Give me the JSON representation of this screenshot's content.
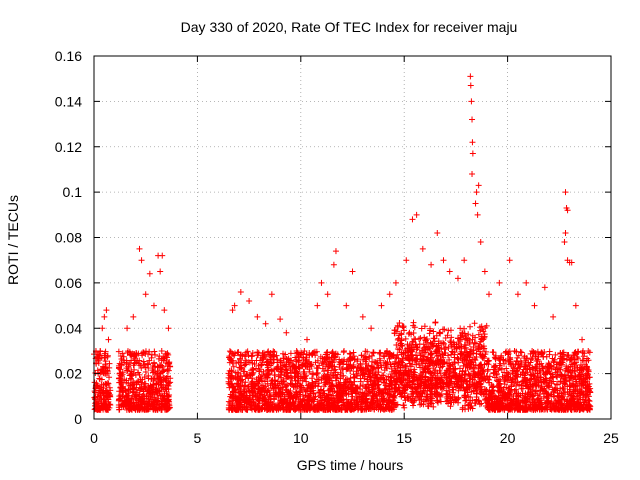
{
  "chart_data": {
    "type": "scatter",
    "title": "Day 330 of 2020, Rate Of TEC Index for receiver maju",
    "xlabel": "GPS time / hours",
    "ylabel": "ROTI / TECUs",
    "xlim": [
      0,
      25
    ],
    "ylim": [
      0,
      0.16
    ],
    "grid": true,
    "marker": "+",
    "color": "#ff0000",
    "xticks": [
      0,
      5,
      10,
      15,
      20,
      25
    ],
    "xtick_labels": [
      "0",
      "5",
      "10",
      "15",
      "20",
      "25"
    ],
    "yticks": [
      0,
      0.02,
      0.04,
      0.06,
      0.08,
      0.1,
      0.12,
      0.14,
      0.16
    ],
    "ytick_labels": [
      "0",
      "0.02",
      "0.04",
      "0.06",
      "0.08",
      "0.1",
      "0.12",
      "0.14",
      "0.16"
    ],
    "series": [
      {
        "name": "ROTI",
        "coverage_intervals_hours": [
          [
            0,
            0.8
          ],
          [
            1.2,
            3.7
          ],
          [
            6.5,
            9.5
          ],
          [
            9.5,
            24
          ]
        ],
        "points": [
          [
            0.1,
            0.015
          ],
          [
            0.2,
            0.02
          ],
          [
            0.3,
            0.03
          ],
          [
            0.4,
            0.04
          ],
          [
            0.5,
            0.045
          ],
          [
            0.6,
            0.048
          ],
          [
            0.7,
            0.035
          ],
          [
            0.2,
            0.008
          ],
          [
            1.3,
            0.02
          ],
          [
            1.6,
            0.04
          ],
          [
            1.9,
            0.045
          ],
          [
            2.2,
            0.075
          ],
          [
            2.3,
            0.07
          ],
          [
            2.5,
            0.055
          ],
          [
            2.7,
            0.064
          ],
          [
            2.9,
            0.05
          ],
          [
            3.1,
            0.072
          ],
          [
            3.2,
            0.065
          ],
          [
            3.3,
            0.072
          ],
          [
            3.4,
            0.048
          ],
          [
            3.6,
            0.04
          ],
          [
            3.5,
            0.012
          ],
          [
            6.7,
            0.048
          ],
          [
            6.8,
            0.05
          ],
          [
            7.1,
            0.056
          ],
          [
            7.5,
            0.052
          ],
          [
            7.9,
            0.045
          ],
          [
            8.3,
            0.042
          ],
          [
            8.6,
            0.055
          ],
          [
            9.0,
            0.044
          ],
          [
            9.3,
            0.038
          ],
          [
            9.8,
            0.03
          ],
          [
            10.3,
            0.035
          ],
          [
            10.8,
            0.05
          ],
          [
            11.0,
            0.06
          ],
          [
            11.3,
            0.055
          ],
          [
            11.6,
            0.068
          ],
          [
            11.7,
            0.074
          ],
          [
            12.2,
            0.05
          ],
          [
            12.5,
            0.065
          ],
          [
            13.0,
            0.045
          ],
          [
            13.4,
            0.04
          ],
          [
            13.9,
            0.05
          ],
          [
            14.3,
            0.055
          ],
          [
            14.6,
            0.06
          ],
          [
            15.1,
            0.07
          ],
          [
            15.4,
            0.088
          ],
          [
            15.6,
            0.09
          ],
          [
            15.9,
            0.075
          ],
          [
            16.3,
            0.068
          ],
          [
            16.6,
            0.082
          ],
          [
            16.9,
            0.07
          ],
          [
            17.2,
            0.065
          ],
          [
            17.6,
            0.062
          ],
          [
            17.9,
            0.07
          ],
          [
            18.2,
            0.151
          ],
          [
            18.22,
            0.147
          ],
          [
            18.25,
            0.14
          ],
          [
            18.28,
            0.132
          ],
          [
            18.3,
            0.122
          ],
          [
            18.32,
            0.117
          ],
          [
            18.28,
            0.108
          ],
          [
            18.5,
            0.1
          ],
          [
            18.6,
            0.103
          ],
          [
            18.55,
            0.09
          ],
          [
            18.45,
            0.095
          ],
          [
            18.7,
            0.078
          ],
          [
            18.9,
            0.065
          ],
          [
            19.1,
            0.055
          ],
          [
            19.6,
            0.06
          ],
          [
            20.1,
            0.07
          ],
          [
            20.5,
            0.055
          ],
          [
            20.9,
            0.06
          ],
          [
            21.3,
            0.05
          ],
          [
            21.8,
            0.058
          ],
          [
            22.2,
            0.045
          ],
          [
            22.8,
            0.1
          ],
          [
            22.85,
            0.093
          ],
          [
            22.9,
            0.092
          ],
          [
            22.8,
            0.082
          ],
          [
            22.75,
            0.078
          ],
          [
            22.9,
            0.07
          ],
          [
            23.0,
            0.069
          ],
          [
            23.1,
            0.069
          ],
          [
            23.3,
            0.05
          ],
          [
            23.6,
            0.035
          ],
          [
            23.9,
            0.03
          ]
        ]
      }
    ]
  }
}
